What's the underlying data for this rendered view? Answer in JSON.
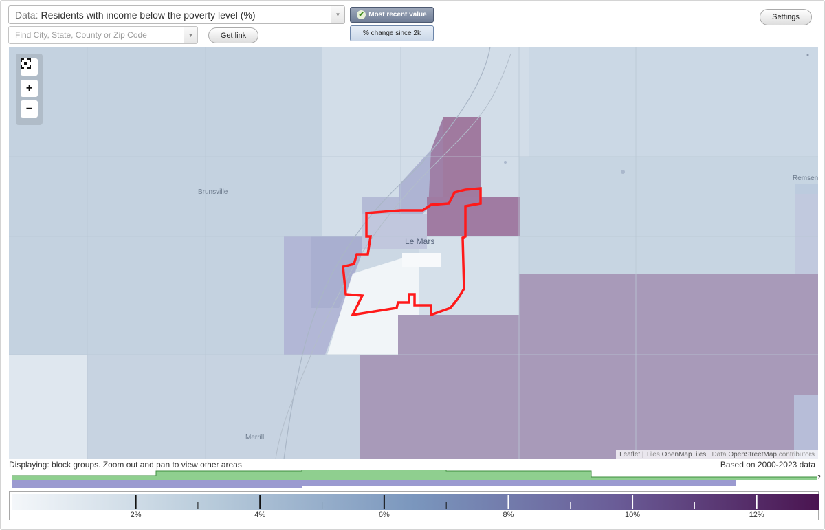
{
  "header": {
    "data_prefix": "Data:",
    "data_value": "Residents with income below the poverty level (%)",
    "find_placeholder": "Find City, State, County or Zip Code",
    "get_link_label": "Get link",
    "settings_label": "Settings",
    "toggle_recent_label": "Most recent value",
    "toggle_change_label": "% change since 2k"
  },
  "map": {
    "places": [
      "Brunsville",
      "Le Mars",
      "Remsen",
      "Merrill"
    ],
    "attribution": {
      "leaflet": "Leaflet",
      "tiles_prefix": "Tiles",
      "tiles": "OpenMapTiles",
      "data_prefix": "Data",
      "data": "OpenStreetMap",
      "contributors": "contributors"
    },
    "zoom": {
      "fit_icon": "fullscreen-icon",
      "in_label": "+",
      "out_label": "−"
    }
  },
  "footer": {
    "display_note": "Displaying: block groups. Zoom out and pan to view other areas",
    "based_on": "Based on 2000-2023 data",
    "help": "?"
  },
  "legend": {
    "min": 0,
    "max": 13,
    "major_ticks": [
      2,
      4,
      6,
      8,
      10,
      12
    ],
    "minor_ticks": [
      3,
      5,
      7,
      9,
      11
    ],
    "labels": [
      "2%",
      "4%",
      "6%",
      "8%",
      "10%",
      "12%"
    ],
    "color_low": "#f4f7fa",
    "color_mid": "#7a96bd",
    "color_high": "#4a1450"
  },
  "colors": {
    "highlight_outline": "#ff0000",
    "histogram_green": "#8fcf8f",
    "histogram_purple": "#9b9ad0"
  }
}
